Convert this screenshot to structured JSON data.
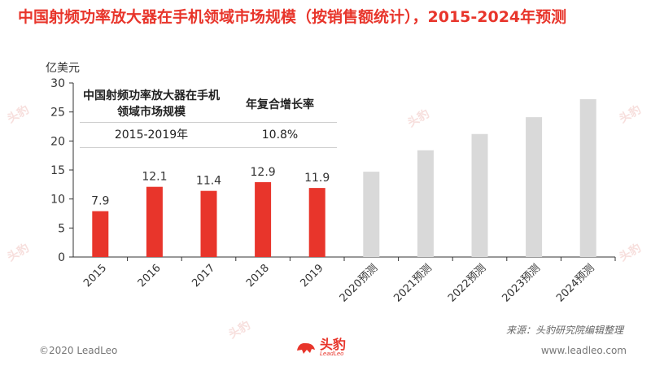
{
  "title": "中国射频功率放大器在手机领域市场规模（按销售额统计），2015-2024年预测",
  "unit_label": "亿美元",
  "table": {
    "header_col1": "中国射频功率放大器在手机领域市场规模",
    "header_col2": "年复合增长率",
    "row_period": "2015-2019年",
    "row_cagr": "10.8%"
  },
  "source": "来源：头豹研究院编辑整理",
  "footer": {
    "copyright": "©2020 LeadLeo",
    "website": "www.leadleo.com"
  },
  "logo": {
    "cn": "头豹",
    "en": "LeadLeo"
  },
  "watermark": "头豹",
  "colors": {
    "actual": "#e8352b",
    "forecast": "#d9d9d9",
    "title": "#e8352b"
  },
  "chart_data": {
    "type": "bar",
    "categories": [
      "2015",
      "2016",
      "2017",
      "2018",
      "2019",
      "2020预测",
      "2021预测",
      "2022预测",
      "2023预测",
      "2024预测"
    ],
    "values": [
      7.9,
      12.1,
      11.4,
      12.9,
      11.9,
      14.7,
      18.4,
      21.2,
      24.1,
      27.2
    ],
    "data_labels": [
      "7.9",
      "12.1",
      "11.4",
      "12.9",
      "11.9",
      "",
      "",
      "",
      "",
      ""
    ],
    "ylim": [
      0,
      30
    ],
    "yticks": [
      0,
      5,
      10,
      15,
      20,
      25,
      30
    ],
    "ylabel": "亿美元",
    "xlabel": "",
    "grid": false,
    "forecast_from_index": 5
  }
}
